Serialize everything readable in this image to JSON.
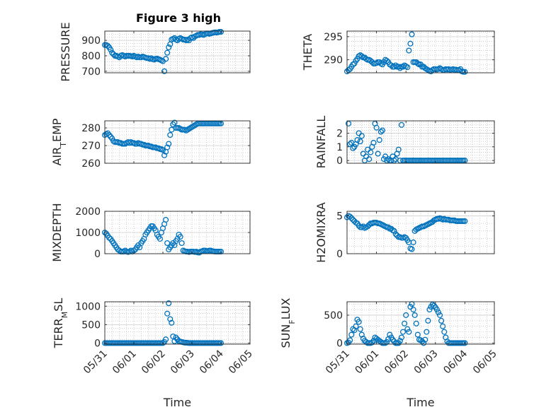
{
  "title": "Figure 3 high",
  "colors": {
    "marker": "#0072BD",
    "axis": "#262626",
    "grid": "#b0b0b0"
  },
  "xaxis": {
    "label": "Time",
    "ticks": [
      "05/31",
      "06/01",
      "06/02",
      "06/03",
      "06/04",
      "06/05"
    ],
    "range": [
      "05/31",
      "06/05"
    ]
  },
  "chart_data": [
    {
      "type": "scatter",
      "id": "pressure",
      "ylabel": "PRESSURE",
      "ylim": [
        690,
        960
      ],
      "yticks": [
        700,
        800,
        900
      ],
      "grid": "on",
      "x": [
        0.0,
        0.05,
        0.1,
        0.15,
        0.2,
        0.25,
        0.3,
        0.35,
        0.4,
        0.45,
        0.5,
        0.55,
        0.6,
        0.65,
        0.7,
        0.75,
        0.8,
        0.85,
        0.9,
        0.95,
        1.0,
        1.05,
        1.1,
        1.15,
        1.2,
        1.25,
        1.3,
        1.35,
        1.4,
        1.45,
        1.5,
        1.55,
        1.6,
        1.65,
        1.7,
        1.75,
        1.8,
        1.85,
        1.9,
        1.95,
        2.0,
        2.05,
        2.1,
        2.15,
        2.2,
        2.25,
        2.3,
        2.35,
        2.4,
        2.45,
        2.5,
        2.55,
        2.6,
        2.65,
        2.7,
        2.75,
        2.8,
        2.85,
        2.9,
        2.95,
        3.0,
        3.05,
        3.1,
        3.15,
        3.2,
        3.25,
        3.3,
        3.35,
        3.4,
        3.45,
        3.5,
        3.55,
        3.6,
        3.65,
        3.7,
        3.75,
        3.8,
        3.85,
        3.9,
        3.95,
        4.0
      ],
      "y": [
        870,
        870,
        865,
        855,
        840,
        820,
        810,
        800,
        800,
        795,
        790,
        800,
        805,
        800,
        795,
        800,
        800,
        800,
        798,
        795,
        800,
        795,
        790,
        795,
        790,
        790,
        795,
        792,
        788,
        785,
        785,
        780,
        785,
        778,
        775,
        780,
        782,
        778,
        775,
        770,
        765,
        700,
        780,
        820,
        855,
        875,
        905,
        910,
        915,
        905,
        900,
        910,
        915,
        910,
        905,
        905,
        900,
        905,
        900,
        915,
        920,
        915,
        925,
        930,
        935,
        935,
        940,
        938,
        935,
        940,
        945,
        945,
        942,
        945,
        948,
        950,
        952,
        950,
        952,
        955,
        955
      ]
    },
    {
      "type": "scatter",
      "id": "theta",
      "ylabel": "THETA",
      "ylim": [
        287.2,
        296.2
      ],
      "yticks": [
        290,
        295
      ],
      "grid": "on",
      "x": [
        0.0,
        0.05,
        0.1,
        0.15,
        0.2,
        0.25,
        0.3,
        0.35,
        0.4,
        0.45,
        0.5,
        0.55,
        0.6,
        0.65,
        0.7,
        0.75,
        0.8,
        0.85,
        0.9,
        0.95,
        1.0,
        1.05,
        1.1,
        1.15,
        1.2,
        1.25,
        1.3,
        1.35,
        1.4,
        1.45,
        1.5,
        1.55,
        1.6,
        1.65,
        1.7,
        1.75,
        1.8,
        1.85,
        1.9,
        1.95,
        2.0,
        2.05,
        2.1,
        2.15,
        2.2,
        2.25,
        2.3,
        2.35,
        2.4,
        2.45,
        2.5,
        2.55,
        2.6,
        2.65,
        2.7,
        2.75,
        2.8,
        2.85,
        2.9,
        2.95,
        3.0,
        3.05,
        3.1,
        3.15,
        3.2,
        3.25,
        3.3,
        3.35,
        3.4,
        3.45,
        3.5,
        3.55,
        3.6,
        3.65,
        3.7,
        3.75,
        3.8,
        3.85,
        3.9,
        3.95,
        4.0
      ],
      "y": [
        287.5,
        287.8,
        288.0,
        288.5,
        289.0,
        289.2,
        289.8,
        290.2,
        290.8,
        291.0,
        290.8,
        290.5,
        290.5,
        290.2,
        290.0,
        290.0,
        289.8,
        289.5,
        289.2,
        289.2,
        289.3,
        289.5,
        289.5,
        289.2,
        289.0,
        289.5,
        290.0,
        289.8,
        289.5,
        289.0,
        288.8,
        288.5,
        288.5,
        288.8,
        288.5,
        288.5,
        288.2,
        288.5,
        288.5,
        288.8,
        288.6,
        288.4,
        292.0,
        293.5,
        295.5,
        289.5,
        289.5,
        289.5,
        289.2,
        289.0,
        289.0,
        288.5,
        288.5,
        288.2,
        288.0,
        287.8,
        287.6,
        287.5,
        287.8,
        288.0,
        288.0,
        287.9,
        288.0,
        288.2,
        288.0,
        287.8,
        287.8,
        288.0,
        287.9,
        288.0,
        287.8,
        287.9,
        288.0,
        287.8,
        287.9,
        287.8,
        287.8,
        288.0,
        287.5,
        287.4,
        287.4
      ]
    },
    {
      "type": "scatter",
      "id": "air_temp",
      "ylabel": "AIR_TEMP",
      "ylim": [
        260,
        284
      ],
      "yticks": [
        260,
        270,
        280
      ],
      "grid": "on",
      "x": [
        0.0,
        0.05,
        0.1,
        0.15,
        0.2,
        0.25,
        0.3,
        0.35,
        0.4,
        0.45,
        0.5,
        0.55,
        0.6,
        0.65,
        0.7,
        0.75,
        0.8,
        0.85,
        0.9,
        0.95,
        1.0,
        1.05,
        1.1,
        1.15,
        1.2,
        1.25,
        1.3,
        1.35,
        1.4,
        1.45,
        1.5,
        1.55,
        1.6,
        1.65,
        1.7,
        1.75,
        1.8,
        1.85,
        1.9,
        1.95,
        2.0,
        2.05,
        2.1,
        2.15,
        2.2,
        2.25,
        2.3,
        2.35,
        2.4,
        2.45,
        2.5,
        2.55,
        2.6,
        2.65,
        2.7,
        2.75,
        2.8,
        2.85,
        2.9,
        2.95,
        3.0,
        3.05,
        3.1,
        3.15,
        3.2,
        3.25,
        3.3,
        3.35,
        3.4,
        3.45,
        3.5,
        3.55,
        3.6,
        3.65,
        3.7,
        3.75,
        3.8,
        3.85,
        3.9,
        3.95,
        4.0
      ],
      "y": [
        276,
        276.5,
        277,
        276,
        275,
        274,
        272.5,
        272,
        272,
        272,
        271.5,
        271.5,
        271,
        271,
        271,
        271.5,
        272,
        271.5,
        272,
        271.5,
        271.5,
        271,
        271,
        271.5,
        271,
        271,
        270.5,
        270.5,
        270,
        270,
        270,
        269.5,
        269.5,
        269,
        269,
        269,
        268.5,
        268.5,
        268,
        268,
        267.5,
        264.5,
        266.5,
        269,
        271,
        276,
        279,
        282,
        283,
        280,
        280,
        280,
        279.5,
        279,
        279,
        279,
        278.5,
        279,
        279.5,
        280,
        280.5,
        281,
        281.5,
        282,
        282.5,
        282.5,
        282.5,
        282.5,
        282.5,
        282.5,
        282.5,
        282.5,
        282.5,
        282.5,
        282.5,
        282.5,
        282.5,
        282.5,
        282.5,
        282.5,
        282.5
      ]
    },
    {
      "type": "scatter",
      "id": "rainfall",
      "ylabel": "RAINFALL",
      "ylim": [
        -0.2,
        2.9
      ],
      "yticks": [
        0,
        1,
        2
      ],
      "grid": "on",
      "x": [
        0.05,
        0.1,
        0.15,
        0.2,
        0.25,
        0.3,
        0.35,
        0.4,
        0.45,
        0.5,
        0.55,
        0.6,
        0.65,
        0.7,
        0.75,
        0.8,
        0.85,
        0.9,
        0.95,
        1.0,
        1.05,
        1.1,
        1.15,
        1.2,
        1.25,
        1.3,
        1.35,
        1.4,
        1.45,
        1.5,
        1.55,
        1.6,
        1.65,
        1.7,
        1.75,
        1.8,
        1.85,
        1.9,
        1.95,
        2.0,
        2.05,
        2.1,
        2.15,
        2.2,
        2.25,
        2.3,
        2.35,
        2.4,
        2.45,
        2.5,
        2.55,
        2.6,
        2.65,
        2.7,
        2.75,
        2.8,
        2.85,
        2.9,
        2.95,
        3.0,
        3.05,
        3.1,
        3.15,
        3.2,
        3.25,
        3.3,
        3.35,
        3.4,
        3.45,
        3.5,
        3.55,
        3.6,
        3.65,
        3.7,
        3.75,
        3.8,
        3.85,
        3.9,
        3.95,
        4.0
      ],
      "y": [
        2.7,
        1.2,
        1.3,
        0.9,
        1.0,
        1.2,
        1.5,
        2.0,
        1.4,
        1.8,
        0.5,
        0.0,
        0.3,
        0.8,
        0.1,
        0.6,
        1.0,
        1.3,
        2.7,
        2.4,
        0.5,
        1.5,
        2.1,
        2.2,
        0.1,
        0.3,
        0.0,
        0.1,
        0.0,
        0.0,
        0.3,
        0.0,
        0.1,
        0.5,
        0.8,
        0.0,
        2.6,
        0.0,
        0.0,
        0.0,
        0.0,
        0.0,
        0.0,
        0.0,
        0.0,
        0.0,
        0.0,
        0.0,
        0.0,
        0.0,
        0.0,
        0.0,
        0.0,
        0.0,
        0.0,
        0.0,
        0.0,
        0.0,
        0.0,
        0.0,
        0.0,
        0.0,
        0.0,
        0.0,
        0.0,
        0.0,
        0.0,
        0.0,
        0.0,
        0.0,
        0.0,
        0.0,
        0.0,
        0.0,
        0.0,
        0.0,
        0.0,
        0.0,
        0.0,
        0.0
      ]
    },
    {
      "type": "scatter",
      "id": "mixdepth",
      "ylabel": "MIXDEPTH",
      "ylim": [
        0,
        2000
      ],
      "yticks": [
        0,
        1000,
        2000
      ],
      "grid": "on",
      "x": [
        0.0,
        0.05,
        0.1,
        0.15,
        0.2,
        0.25,
        0.3,
        0.35,
        0.4,
        0.45,
        0.5,
        0.55,
        0.6,
        0.65,
        0.7,
        0.75,
        0.8,
        0.85,
        0.9,
        0.95,
        1.0,
        1.05,
        1.1,
        1.15,
        1.2,
        1.25,
        1.3,
        1.35,
        1.4,
        1.45,
        1.5,
        1.55,
        1.6,
        1.65,
        1.7,
        1.75,
        1.8,
        1.85,
        1.9,
        1.95,
        2.0,
        2.05,
        2.1,
        2.15,
        2.2,
        2.25,
        2.3,
        2.35,
        2.4,
        2.45,
        2.5,
        2.55,
        2.6,
        2.65,
        2.7,
        2.75,
        2.8,
        2.85,
        2.9,
        2.95,
        3.0,
        3.05,
        3.1,
        3.15,
        3.2,
        3.25,
        3.3,
        3.35,
        3.4,
        3.45,
        3.5,
        3.55,
        3.6,
        3.65,
        3.7,
        3.75,
        3.8,
        3.85,
        3.9,
        3.95,
        4.0
      ],
      "y": [
        1000,
        950,
        850,
        750,
        700,
        600,
        500,
        400,
        300,
        200,
        150,
        100,
        100,
        100,
        150,
        100,
        80,
        100,
        150,
        100,
        150,
        200,
        300,
        400,
        300,
        500,
        600,
        700,
        900,
        1000,
        1100,
        1200,
        1300,
        1300,
        1200,
        1100,
        900,
        800,
        700,
        1000,
        1200,
        1400,
        1600,
        500,
        200,
        300,
        400,
        500,
        400,
        600,
        700,
        900,
        800,
        500,
        150,
        120,
        100,
        100,
        80,
        100,
        100,
        100,
        80,
        100,
        60,
        50,
        100,
        120,
        150,
        150,
        120,
        130,
        150,
        150,
        120,
        110,
        100,
        100,
        100,
        100,
        100
      ]
    },
    {
      "type": "scatter",
      "id": "h2omixra",
      "ylabel": "H2OMIXRA",
      "ylim": [
        0,
        5.6
      ],
      "yticks": [
        0,
        5
      ],
      "grid": "on",
      "x": [
        0.0,
        0.05,
        0.1,
        0.15,
        0.2,
        0.25,
        0.3,
        0.35,
        0.4,
        0.45,
        0.5,
        0.55,
        0.6,
        0.65,
        0.7,
        0.75,
        0.8,
        0.85,
        0.9,
        0.95,
        1.0,
        1.05,
        1.1,
        1.15,
        1.2,
        1.25,
        1.3,
        1.35,
        1.4,
        1.45,
        1.5,
        1.55,
        1.6,
        1.65,
        1.7,
        1.75,
        1.8,
        1.85,
        1.9,
        1.95,
        2.0,
        2.05,
        2.1,
        2.15,
        2.2,
        2.25,
        2.3,
        2.35,
        2.4,
        2.45,
        2.5,
        2.55,
        2.6,
        2.65,
        2.7,
        2.75,
        2.8,
        2.85,
        2.9,
        2.95,
        3.0,
        3.05,
        3.1,
        3.15,
        3.2,
        3.25,
        3.3,
        3.35,
        3.4,
        3.45,
        3.5,
        3.55,
        3.6,
        3.65,
        3.7,
        3.75,
        3.8,
        3.85,
        3.9,
        3.95,
        4.0
      ],
      "y": [
        4.8,
        5.0,
        4.9,
        4.7,
        4.5,
        4.3,
        4.1,
        4.0,
        3.7,
        3.5,
        3.5,
        3.6,
        3.4,
        3.5,
        3.6,
        3.8,
        4.0,
        4.0,
        4.1,
        4.1,
        4.1,
        4.0,
        4.0,
        3.9,
        3.8,
        3.7,
        3.6,
        3.5,
        3.5,
        3.3,
        3.3,
        3.1,
        3.0,
        2.6,
        2.4,
        2.2,
        2.2,
        2.1,
        2.1,
        2.2,
        2.1,
        1.8,
        1.5,
        0.7,
        0.6,
        1.5,
        3.0,
        3.2,
        3.3,
        3.4,
        3.5,
        3.6,
        3.6,
        3.7,
        3.8,
        3.9,
        4.0,
        4.1,
        4.2,
        4.4,
        4.5,
        4.6,
        4.6,
        4.7,
        4.6,
        4.5,
        4.6,
        4.5,
        4.5,
        4.5,
        4.4,
        4.4,
        4.4,
        4.4,
        4.3,
        4.3,
        4.3,
        4.3,
        4.3,
        4.3,
        4.3
      ]
    },
    {
      "type": "scatter",
      "id": "terr_msl",
      "ylabel": "TERR_MSL",
      "ylim": [
        -30,
        1120
      ],
      "yticks": [
        0,
        500,
        1000
      ],
      "grid": "on",
      "x": [
        0.0,
        0.05,
        0.1,
        0.15,
        0.2,
        0.25,
        0.3,
        0.35,
        0.4,
        0.45,
        0.5,
        0.55,
        0.6,
        0.65,
        0.7,
        0.75,
        0.8,
        0.85,
        0.9,
        0.95,
        1.0,
        1.05,
        1.1,
        1.15,
        1.2,
        1.25,
        1.3,
        1.35,
        1.4,
        1.45,
        1.5,
        1.55,
        1.6,
        1.65,
        1.7,
        1.75,
        1.8,
        1.85,
        1.9,
        1.95,
        2.0,
        2.05,
        2.1,
        2.15,
        2.2,
        2.25,
        2.3,
        2.35,
        2.4,
        2.45,
        2.5,
        2.55,
        2.6,
        2.65,
        2.7,
        2.75,
        2.8,
        2.85,
        2.9,
        2.95,
        3.0,
        3.05,
        3.1,
        3.15,
        3.2,
        3.25,
        3.3,
        3.35,
        3.4,
        3.45,
        3.5,
        3.55,
        3.6,
        3.65,
        3.7,
        3.75,
        3.8,
        3.85,
        3.9,
        3.95,
        4.0
      ],
      "y": [
        0,
        0,
        0,
        0,
        0,
        0,
        0,
        0,
        0,
        0,
        0,
        0,
        0,
        0,
        0,
        0,
        0,
        0,
        0,
        0,
        0,
        0,
        0,
        0,
        0,
        0,
        0,
        0,
        0,
        0,
        0,
        0,
        0,
        0,
        0,
        0,
        0,
        0,
        0,
        0,
        0,
        30,
        100,
        800,
        1080,
        650,
        550,
        180,
        50,
        150,
        100,
        50,
        40,
        30,
        20,
        10,
        10,
        5,
        0,
        0,
        0,
        0,
        0,
        0,
        0,
        0,
        0,
        0,
        0,
        0,
        0,
        0,
        0,
        0,
        0,
        0,
        0,
        0,
        0,
        0,
        0
      ]
    },
    {
      "type": "scatter",
      "id": "sun_flux",
      "ylabel": "SUN_FLUX",
      "ylim": [
        -20,
        740
      ],
      "yticks": [
        0,
        500
      ],
      "grid": "on",
      "x": [
        0.0,
        0.05,
        0.1,
        0.15,
        0.2,
        0.25,
        0.3,
        0.35,
        0.4,
        0.45,
        0.5,
        0.55,
        0.6,
        0.65,
        0.7,
        0.75,
        0.8,
        0.85,
        0.9,
        0.95,
        1.0,
        1.05,
        1.1,
        1.15,
        1.2,
        1.25,
        1.3,
        1.35,
        1.4,
        1.45,
        1.5,
        1.55,
        1.6,
        1.65,
        1.7,
        1.75,
        1.8,
        1.85,
        1.9,
        1.95,
        2.0,
        2.05,
        2.1,
        2.15,
        2.2,
        2.25,
        2.3,
        2.35,
        2.4,
        2.45,
        2.5,
        2.55,
        2.6,
        2.65,
        2.7,
        2.75,
        2.8,
        2.85,
        2.9,
        2.95,
        3.0,
        3.05,
        3.1,
        3.15,
        3.2,
        3.25,
        3.3,
        3.35,
        3.4,
        3.45,
        3.5,
        3.55,
        3.6,
        3.65,
        3.7,
        3.75,
        3.8,
        3.85,
        3.9,
        3.95,
        4.0
      ],
      "y": [
        0,
        10,
        50,
        150,
        250,
        230,
        300,
        420,
        380,
        250,
        150,
        80,
        40,
        20,
        0,
        0,
        0,
        10,
        40,
        100,
        80,
        60,
        40,
        20,
        0,
        0,
        0,
        20,
        70,
        150,
        100,
        60,
        30,
        0,
        0,
        0,
        40,
        100,
        200,
        350,
        500,
        250,
        200,
        650,
        700,
        600,
        500,
        350,
        150,
        60,
        50,
        30,
        0,
        60,
        200,
        400,
        600,
        650,
        690,
        670,
        640,
        600,
        550,
        500,
        400,
        300,
        200,
        100,
        30,
        0,
        0,
        0,
        0,
        0,
        0,
        0,
        0,
        0,
        0,
        0,
        0
      ]
    }
  ]
}
